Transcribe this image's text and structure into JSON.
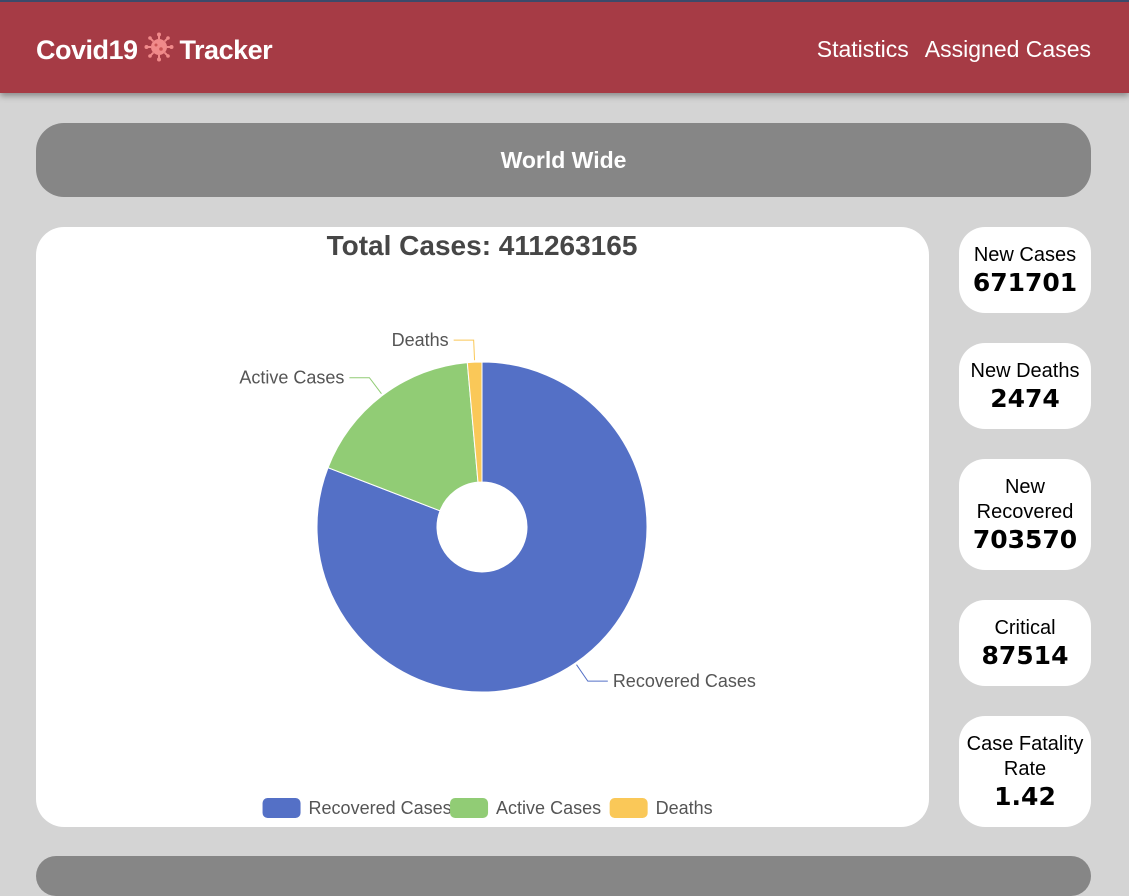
{
  "header": {
    "brand_left": "Covid19",
    "brand_icon": "virus-icon",
    "brand_right": "Tracker",
    "nav": [
      "Statistics",
      "Assigned Cases"
    ]
  },
  "banner": {
    "title": "World Wide"
  },
  "chart_data": {
    "type": "pie",
    "title": "Total Cases: 411263165",
    "categories": [
      "Recovered Cases",
      "Active Cases",
      "Deaths"
    ],
    "values": [
      332500000,
      72900000,
      5840000
    ],
    "colors": [
      "#5470c6",
      "#91cc75",
      "#fac858"
    ],
    "donut": true,
    "legend": "bottom"
  },
  "stats": [
    {
      "label": "New Cases",
      "value": "671701"
    },
    {
      "label": "New Deaths",
      "value": "2474"
    },
    {
      "label": "New Recovered",
      "value": "703570"
    },
    {
      "label": "Critical",
      "value": "87514"
    },
    {
      "label": "Case Fatality Rate",
      "value": "1.42"
    }
  ]
}
